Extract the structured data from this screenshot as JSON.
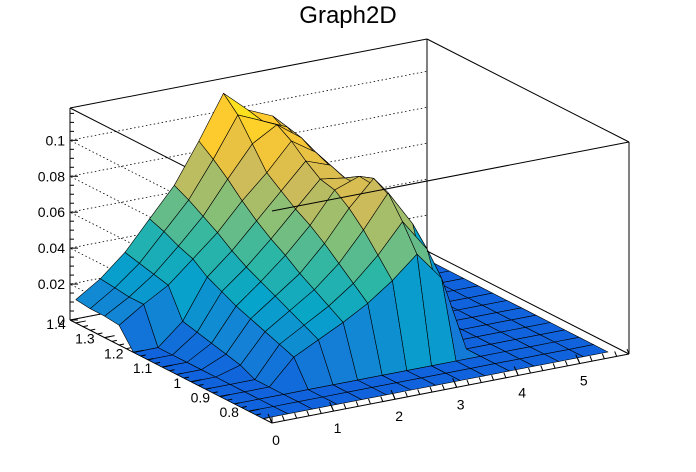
{
  "chart_data": {
    "type": "surface",
    "title": "Graph2D",
    "x_ticks": [
      "0",
      "1",
      "2",
      "3",
      "4",
      "5"
    ],
    "y_ticks": [
      "0.8",
      "0.9",
      "1",
      "1.1",
      "1.2",
      "1.3",
      "1.4"
    ],
    "z_ticks": [
      "0",
      "0.02",
      "0.04",
      "0.06",
      "0.08",
      "0.1"
    ],
    "xlim": [
      0,
      5.8
    ],
    "ylim": [
      0.72,
      1.42
    ],
    "zlim": [
      0,
      0.118
    ],
    "palette": "kBird",
    "grid": true,
    "grid_x": [
      0,
      0.4,
      0.8,
      1.2,
      1.6,
      2.0,
      2.4,
      2.8,
      3.2,
      3.6,
      4.0,
      4.4,
      4.8,
      5.2,
      5.6
    ],
    "grid_y": [
      0.75,
      0.8,
      0.85,
      0.9,
      0.95,
      1.0,
      1.05,
      1.1,
      1.15,
      1.2,
      1.25,
      1.3,
      1.35,
      1.4
    ],
    "z": [
      [
        0.0,
        0.0,
        0.0,
        0.0,
        0.0,
        0.0,
        0.0,
        0.0,
        0.0,
        0.0,
        0.0,
        0.0,
        0.0,
        0.0,
        0.0
      ],
      [
        0.0,
        0.0,
        0.0,
        0.0,
        0.0,
        0.0,
        0.0,
        0.0,
        0.0,
        0.0,
        0.0,
        0.0,
        0.0,
        0.0,
        0.0
      ],
      [
        0.0,
        0.0,
        0.0,
        0.0,
        0.0,
        0.0,
        0.0,
        0.0,
        0.0,
        0.0,
        0.0,
        0.0,
        0.0,
        0.0,
        0.0
      ],
      [
        0.0,
        0.0,
        0.0,
        0.014,
        0.021,
        0.028,
        0.036,
        0.046,
        0.058,
        0.042,
        0.0,
        0.0,
        0.0,
        0.0,
        0.0
      ],
      [
        0.0,
        0.0,
        0.0,
        0.017,
        0.025,
        0.033,
        0.043,
        0.056,
        0.072,
        0.054,
        0.0,
        0.0,
        0.0,
        0.0,
        0.0
      ],
      [
        0.0,
        0.0,
        0.004,
        0.02,
        0.029,
        0.038,
        0.05,
        0.066,
        0.084,
        0.064,
        0.0,
        0.0,
        0.0,
        0.0,
        0.0
      ],
      [
        0.0,
        0.0,
        0.006,
        0.023,
        0.033,
        0.043,
        0.057,
        0.074,
        0.088,
        0.07,
        0.0,
        0.0,
        0.0,
        0.0,
        0.0
      ],
      [
        0.0,
        0.0,
        0.008,
        0.026,
        0.037,
        0.049,
        0.063,
        0.08,
        0.085,
        0.074,
        0.0,
        0.0,
        0.0,
        0.0,
        0.0
      ],
      [
        0.0,
        0.0,
        0.01,
        0.03,
        0.041,
        0.054,
        0.068,
        0.082,
        0.08,
        0.07,
        0.0,
        0.0,
        0.0,
        0.0,
        0.0
      ],
      [
        0.0,
        0.0,
        0.012,
        0.034,
        0.046,
        0.06,
        0.074,
        0.088,
        0.083,
        0.068,
        0.0,
        0.0,
        0.0,
        0.0,
        0.0
      ],
      [
        0.011,
        0.02,
        0.028,
        0.04,
        0.052,
        0.067,
        0.08,
        0.095,
        0.086,
        0.07,
        0.0,
        0.0,
        0.0,
        0.0,
        0.0
      ],
      [
        0.012,
        0.02,
        0.03,
        0.043,
        0.057,
        0.075,
        0.092,
        0.1,
        0.09,
        0.072,
        0.0,
        0.0,
        0.0,
        0.0,
        0.0
      ],
      [
        0.012,
        0.021,
        0.032,
        0.047,
        0.062,
        0.082,
        0.104,
        0.098,
        0.092,
        0.074,
        0.0,
        0.0,
        0.0,
        0.0,
        0.0
      ],
      [
        0.013,
        0.022,
        0.034,
        0.05,
        0.066,
        0.088,
        0.112,
        0.1,
        0.094,
        0.076,
        0.0,
        0.0,
        0.0,
        0.0,
        0.0
      ]
    ]
  }
}
